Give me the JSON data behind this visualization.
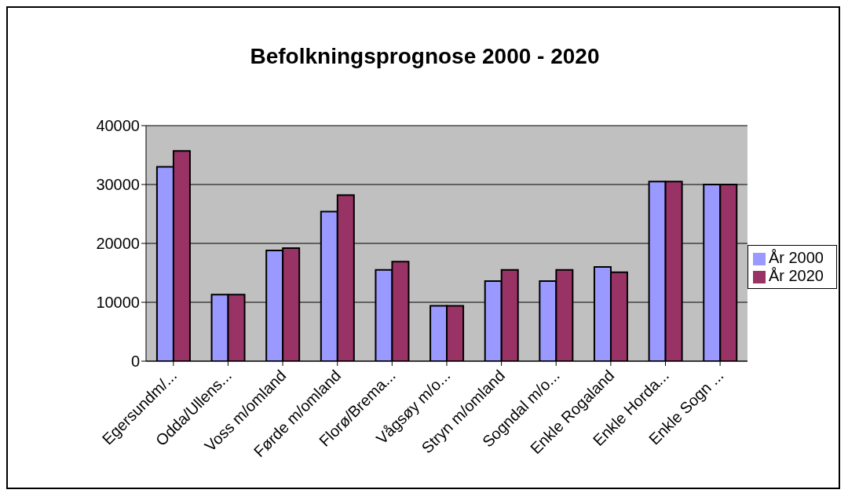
{
  "chart_data": {
    "type": "bar",
    "title": "Befolkningsprognose 2000 - 2020",
    "categories": [
      "Egersundm/...",
      "Odda/Ullens...",
      "Voss m/omland",
      "Førde m/omland",
      "Florø/Brema...",
      "Vågsøy m/o...",
      "Stryn m/omland",
      "Sogndal m/o...",
      "Enkle Rogaland",
      "Enkle Horda...",
      "Enkle Sogn ..."
    ],
    "series": [
      {
        "name": "År 2000",
        "color": "#9999ff",
        "values": [
          33000,
          11300,
          18800,
          25400,
          15500,
          9400,
          13600,
          13600,
          16000,
          30500,
          30000
        ]
      },
      {
        "name": "År 2020",
        "color": "#993366",
        "values": [
          35700,
          11300,
          19200,
          28200,
          16900,
          9400,
          15500,
          15500,
          15100,
          30500,
          30000
        ]
      }
    ],
    "ylim": [
      0,
      40000
    ],
    "yticks": [
      0,
      10000,
      20000,
      30000,
      40000
    ],
    "grid": "y",
    "legend": "right"
  }
}
